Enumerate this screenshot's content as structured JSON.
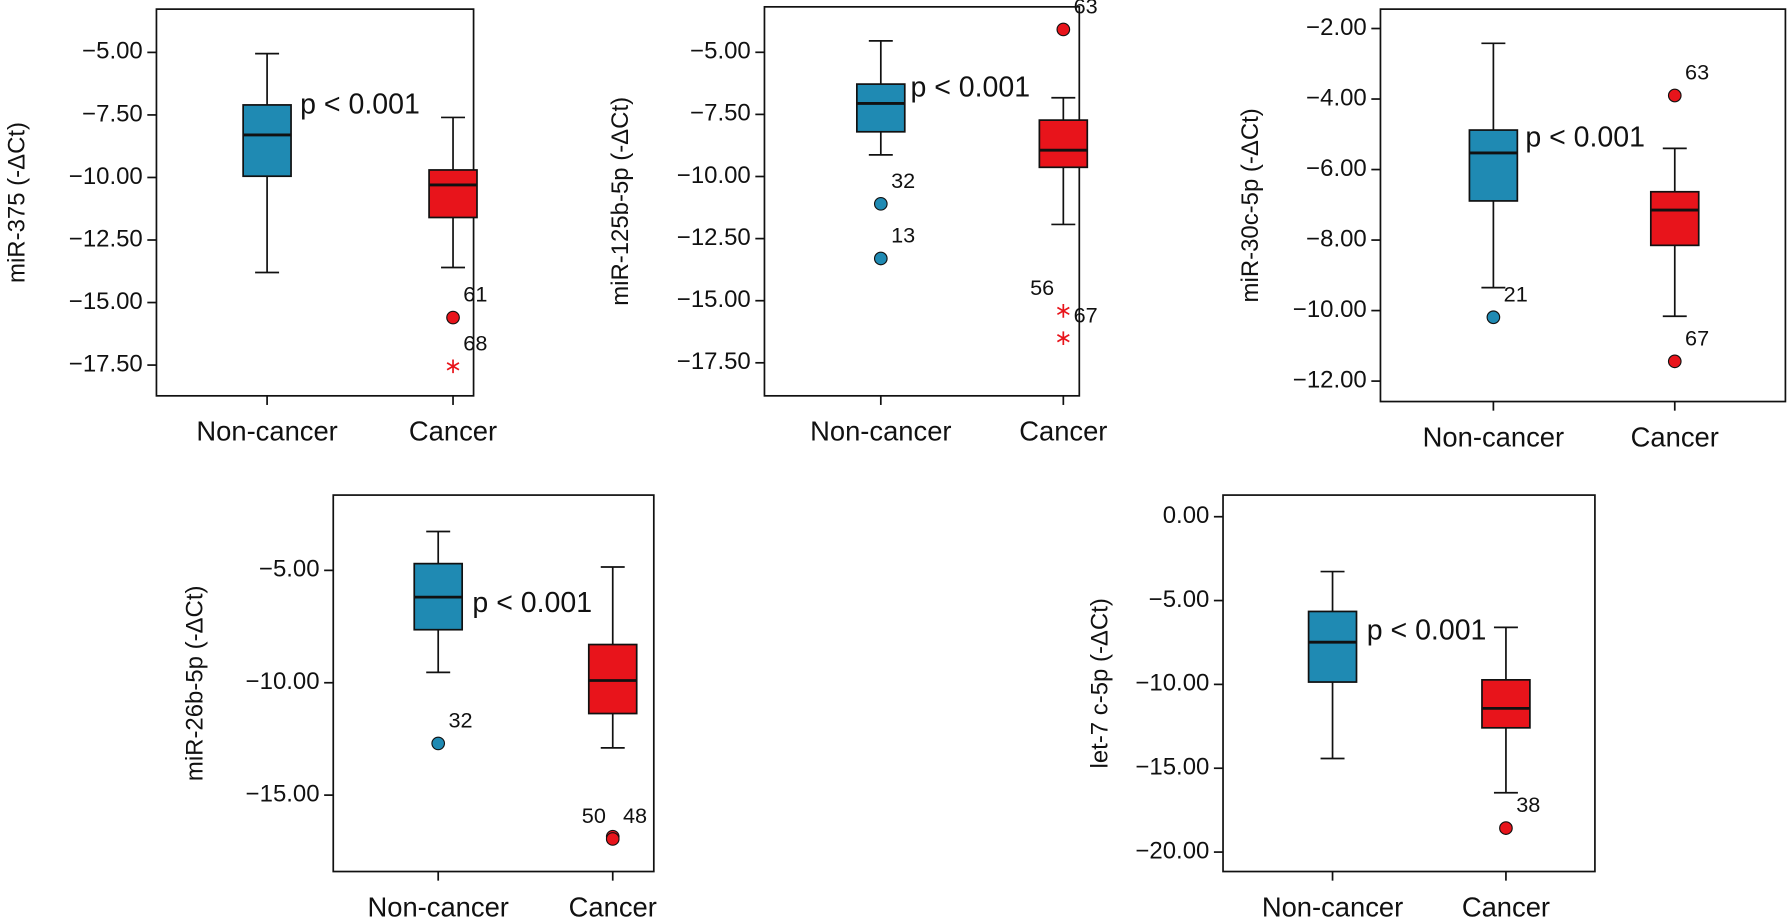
{
  "chart_data": [
    {
      "type": "box",
      "ylabel": "miR-375 (-ΔCt)",
      "annotation": "p < 0.001",
      "categories": [
        "Non-cancer",
        "Cancer"
      ],
      "ylim": [
        -18.73,
        -3.27
      ],
      "yticks": [
        {
          "value": -5,
          "label": "−5.00"
        },
        {
          "value": -7.5,
          "label": "−7.50"
        },
        {
          "value": -10,
          "label": "−10.00"
        },
        {
          "value": -12.5,
          "label": "−12.50"
        },
        {
          "value": -15,
          "label": "−15.00"
        },
        {
          "value": -17.5,
          "label": "−17.50"
        }
      ],
      "boxes": [
        {
          "color": "#1f8ab3",
          "min": -13.8,
          "q1": -9.95,
          "median": -8.3,
          "q3": -7.1,
          "max": -5.05,
          "outliers": []
        },
        {
          "color": "#e8141b",
          "min": -13.6,
          "q1": -11.6,
          "median": -10.3,
          "q3": -9.7,
          "max": -7.6,
          "outliers": [
            {
              "value": -15.6,
              "label": "61",
              "marker": "circle"
            },
            {
              "value": -17.55,
              "label": "68",
              "marker": "star"
            }
          ]
        }
      ]
    },
    {
      "type": "box",
      "ylabel": "miR-125b-5p (-ΔCt)",
      "annotation": "p < 0.001",
      "categories": [
        "Non-cancer",
        "Cancer"
      ],
      "ylim": [
        -18.83,
        -3.17
      ],
      "yticks": [
        {
          "value": -5,
          "label": "−5.00"
        },
        {
          "value": -7.5,
          "label": "−7.50"
        },
        {
          "value": -10,
          "label": "−10.00"
        },
        {
          "value": -12.5,
          "label": "−12.50"
        },
        {
          "value": -15,
          "label": "−15.00"
        },
        {
          "value": -17.5,
          "label": "−17.50"
        }
      ],
      "boxes": [
        {
          "color": "#1f8ab3",
          "min": -9.13,
          "q1": -8.2,
          "median": -7.06,
          "q3": -6.28,
          "max": -4.54,
          "outliers": [
            {
              "value": -11.1,
              "label": "32",
              "marker": "circle"
            },
            {
              "value": -13.3,
              "label": "13",
              "marker": "circle"
            }
          ]
        },
        {
          "color": "#e8141b",
          "min": -11.93,
          "q1": -9.63,
          "median": -8.94,
          "q3": -7.73,
          "max": -6.83,
          "outliers": [
            {
              "value": -4.08,
              "label": "63",
              "marker": "circle"
            },
            {
              "value": -15.41,
              "label": "56",
              "marker": "star"
            },
            {
              "value": -16.51,
              "label": "67",
              "marker": "star"
            }
          ]
        }
      ]
    },
    {
      "type": "box",
      "ylabel": "miR-30c-5p (-ΔCt)",
      "annotation": "p < 0.001",
      "categories": [
        "Non-cancer",
        "Cancer"
      ],
      "ylim": [
        -12.58,
        -1.45
      ],
      "yticks": [
        {
          "value": -2,
          "label": "−2.00"
        },
        {
          "value": -4,
          "label": "−4.00"
        },
        {
          "value": -6,
          "label": "−6.00"
        },
        {
          "value": -8,
          "label": "−8.00"
        },
        {
          "value": -10,
          "label": "−10.00"
        },
        {
          "value": -12,
          "label": "−12.00"
        }
      ],
      "boxes": [
        {
          "color": "#1f8ab3",
          "min": -9.35,
          "q1": -6.89,
          "median": -5.53,
          "q3": -4.88,
          "max": -2.42,
          "outliers": [
            {
              "value": -10.19,
              "label": "21",
              "marker": "circle"
            }
          ]
        },
        {
          "color": "#e8141b",
          "min": -10.16,
          "q1": -8.15,
          "median": -7.15,
          "q3": -6.63,
          "max": -5.4,
          "outliers": [
            {
              "value": -3.9,
              "label": "63",
              "marker": "circle"
            },
            {
              "value": -11.44,
              "label": "67",
              "marker": "circle"
            }
          ]
        }
      ]
    },
    {
      "type": "box",
      "ylabel": "miR-26b-5p (-ΔCt)",
      "annotation": "p < 0.001",
      "categories": [
        "Non-cancer",
        "Cancer"
      ],
      "ylim": [
        -18.4,
        -1.65
      ],
      "yticks": [
        {
          "value": -5,
          "label": "−5.00"
        },
        {
          "value": -10,
          "label": "−10.00"
        },
        {
          "value": -15,
          "label": "−15.00"
        }
      ],
      "boxes": [
        {
          "color": "#1f8ab3",
          "min": -9.54,
          "q1": -7.64,
          "median": -6.19,
          "q3": -4.7,
          "max": -3.27,
          "outliers": [
            {
              "value": -12.7,
              "label": "32",
              "marker": "circle"
            }
          ]
        },
        {
          "color": "#e8141b",
          "min": -12.9,
          "q1": -11.37,
          "median": -9.9,
          "q3": -8.3,
          "max": -4.85,
          "outliers": [
            {
              "value": -16.85,
              "label": "50",
              "marker": "circle"
            },
            {
              "value": -16.95,
              "label": "48",
              "marker": "circle"
            }
          ]
        }
      ]
    },
    {
      "type": "box",
      "ylabel": "let-7 c-5p (-ΔCt)",
      "annotation": "p < 0.001",
      "categories": [
        "Non-cancer",
        "Cancer"
      ],
      "ylim": [
        -21.16,
        1.29
      ],
      "yticks": [
        {
          "value": 0,
          "label": "0.00"
        },
        {
          "value": -5,
          "label": "−5.00"
        },
        {
          "value": -10,
          "label": "−10.00"
        },
        {
          "value": -15,
          "label": "−15.00"
        },
        {
          "value": -20,
          "label": "−20.00"
        }
      ],
      "boxes": [
        {
          "color": "#1f8ab3",
          "min": -14.42,
          "q1": -9.86,
          "median": -7.48,
          "q3": -5.65,
          "max": -3.27,
          "outliers": []
        },
        {
          "color": "#e8141b",
          "min": -16.46,
          "q1": -12.59,
          "median": -11.43,
          "q3": -9.73,
          "max": -6.6,
          "outliers": [
            {
              "value": -18.57,
              "label": "38",
              "marker": "circle"
            }
          ]
        }
      ]
    }
  ]
}
